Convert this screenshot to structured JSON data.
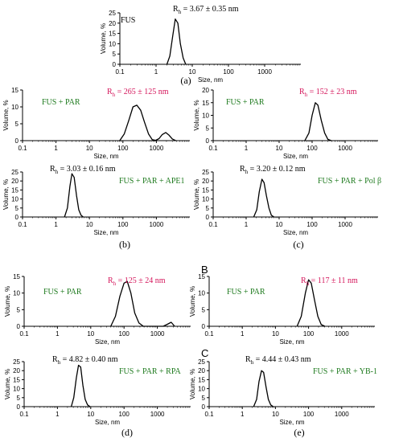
{
  "colors": {
    "axis": "#000000",
    "curve": "#000000",
    "sample": "#1e7a1e",
    "rh_red": "#d4145a",
    "rh_black": "#000000"
  },
  "chart_data": [
    {
      "id": "a",
      "type": "line",
      "caption": "(a)",
      "sample": "FUS",
      "sample_color": "black",
      "rh_sub": "h",
      "rh_value": "3.67 ± 0.35 nm",
      "rh_color": "black",
      "rh_sym": "R",
      "xlabel": "Size, nm",
      "ylabel": "Volume, %",
      "xscale": "log",
      "xlim": [
        0.1,
        10000
      ],
      "ylim": [
        0,
        25
      ],
      "yticks": [
        "0",
        "5",
        "10",
        "15",
        "20",
        "25"
      ],
      "xticks": [
        "0.1",
        "1",
        "10",
        "100",
        "1000"
      ],
      "series": [
        {
          "x": [
            2.0,
            2.4,
            2.9,
            3.4,
            4.0,
            4.7,
            5.6,
            6.6
          ],
          "y": [
            0,
            4,
            14,
            22,
            20,
            10,
            3,
            0
          ]
        }
      ]
    },
    {
      "id": "b_top",
      "type": "line",
      "caption": "",
      "sample": "FUS + PAR",
      "sample_color": "green",
      "rh_sub": "h",
      "rh_value": "265 ± 125 nm",
      "rh_color": "red",
      "rh_sym": "R",
      "xlabel": "Size, nm",
      "ylabel": "Volume, %",
      "xscale": "log",
      "xlim": [
        0.1,
        10000
      ],
      "ylim": [
        0,
        15
      ],
      "yticks": [
        "0",
        "5",
        "10",
        "15"
      ],
      "xticks": [
        "0.1",
        "1",
        "10",
        "100",
        "1000"
      ],
      "series": [
        {
          "x": [
            80,
            110,
            150,
            200,
            260,
            340,
            440,
            580,
            750,
            950,
            1200,
            1500,
            1900,
            2400,
            3000,
            3800
          ],
          "y": [
            0,
            2,
            6,
            10,
            10.5,
            9,
            5.5,
            2,
            0.3,
            0.1,
            0.6,
            1.8,
            2.4,
            1.6,
            0.5,
            0
          ]
        }
      ]
    },
    {
      "id": "b_bot",
      "type": "line",
      "caption": "(b)",
      "sample": "FUS + PAR + APE1",
      "sample_color": "green",
      "rh_sub": "h",
      "rh_value": "3.03 ± 0.16 nm",
      "rh_color": "black",
      "rh_sym": "R",
      "xlabel": "Size, nm",
      "ylabel": "Volume, %",
      "xscale": "log",
      "xlim": [
        0.1,
        10000
      ],
      "ylim": [
        0,
        25
      ],
      "yticks": [
        "0",
        "5",
        "10",
        "15",
        "20",
        "25"
      ],
      "xticks": [
        "0.1",
        "1",
        "10",
        "100",
        "1000"
      ],
      "series": [
        {
          "x": [
            1.8,
            2.2,
            2.6,
            3.0,
            3.5,
            4.1,
            4.8,
            5.6,
            6.5
          ],
          "y": [
            0,
            5,
            17,
            24,
            22,
            12,
            4,
            1,
            0
          ]
        }
      ]
    },
    {
      "id": "c_top",
      "type": "line",
      "caption": "",
      "sample": "FUS + PAR",
      "sample_color": "green",
      "rh_sub": "h",
      "rh_value": "152 ± 23 nm",
      "rh_color": "red",
      "rh_sym": "R",
      "xlabel": "Size, nm",
      "ylabel": "Volume, %",
      "xscale": "log",
      "xlim": [
        0.1,
        10000
      ],
      "ylim": [
        0,
        20
      ],
      "yticks": [
        "0",
        "5",
        "10",
        "15",
        "20"
      ],
      "xticks": [
        "0.1",
        "1",
        "10",
        "100",
        "1000"
      ],
      "series": [
        {
          "x": [
            60,
            80,
            100,
            125,
            150,
            190,
            240,
            300,
            380
          ],
          "y": [
            0,
            3,
            10,
            15,
            14,
            8,
            3,
            0.5,
            0
          ]
        }
      ]
    },
    {
      "id": "c_bot",
      "type": "line",
      "caption": "(c)",
      "sample": "FUS + PAR + Pol β",
      "sample_color": "green",
      "rh_sub": "h",
      "rh_value": "3.20 ± 0.12 nm",
      "rh_color": "black",
      "rh_sym": "R",
      "xlabel": "Size, nm",
      "ylabel": "Volume, %",
      "xscale": "log",
      "xlim": [
        0.1,
        10000
      ],
      "ylim": [
        0,
        25
      ],
      "yticks": [
        "0",
        "5",
        "10",
        "15",
        "20",
        "25"
      ],
      "xticks": [
        "0.1",
        "1",
        "10",
        "100",
        "1000"
      ],
      "series": [
        {
          "x": [
            1.7,
            2.1,
            2.5,
            3.0,
            3.5,
            4.1,
            4.9,
            5.8,
            7.0
          ],
          "y": [
            0,
            4,
            14,
            21,
            19,
            12,
            5,
            1,
            0
          ]
        }
      ]
    },
    {
      "id": "d_top",
      "type": "line",
      "caption": "",
      "sample": "FUS + PAR",
      "sample_color": "green",
      "rh_sub": "h",
      "rh_value": "125 ± 24 nm",
      "rh_color": "red",
      "rh_sym": "R",
      "xlabel": "Size, nm",
      "ylabel": "Volume, %",
      "xscale": "log",
      "xlim": [
        0.1,
        10000
      ],
      "ylim": [
        0,
        15
      ],
      "yticks": [
        "0",
        "5",
        "10",
        "15"
      ],
      "xticks": [
        "0.1",
        "1",
        "10",
        "100",
        "1000"
      ],
      "series": [
        {
          "x": [
            40,
            55,
            75,
            100,
            125,
            160,
            210,
            280,
            380,
            600,
            1500,
            2000,
            2600,
            3300
          ],
          "y": [
            0,
            3,
            9,
            13,
            13.5,
            10,
            4,
            1,
            0,
            0,
            0,
            0.6,
            1.2,
            0
          ]
        }
      ]
    },
    {
      "id": "d_bot",
      "type": "line",
      "caption": "(d)",
      "sample": "FUS + PAR + RPA",
      "sample_color": "green",
      "rh_sub": "h",
      "rh_value": "4.82 ± 0.40 nm",
      "rh_color": "black",
      "rh_sym": "R",
      "xlabel": "Size, nm",
      "ylabel": "Volume, %",
      "xscale": "log",
      "xlim": [
        0.1,
        10000
      ],
      "ylim": [
        0,
        25
      ],
      "yticks": [
        "0",
        "5",
        "10",
        "15",
        "20",
        "25"
      ],
      "xticks": [
        "0.1",
        "1",
        "10",
        "100",
        "1000"
      ],
      "series": [
        {
          "x": [
            2.6,
            3.1,
            3.7,
            4.3,
            5.0,
            5.8,
            6.8,
            8.0,
            9.5
          ],
          "y": [
            0,
            5,
            16,
            23,
            22,
            12,
            4,
            1,
            0
          ]
        }
      ]
    },
    {
      "id": "e_top",
      "type": "line",
      "caption": "",
      "sample": "FUS + PAR",
      "sample_color": "green",
      "rh_sub": "h",
      "rh_value": "117 ± 11 nm",
      "rh_color": "red",
      "rh_sym": "R",
      "xlabel": "Size, nm",
      "ylabel": "Volume, %",
      "xscale": "log",
      "xlim": [
        0.1,
        10000
      ],
      "ylim": [
        0,
        15
      ],
      "yticks": [
        "0",
        "5",
        "10",
        "15"
      ],
      "xticks": [
        "0.1",
        "1",
        "10",
        "100",
        "1000"
      ],
      "series": [
        {
          "x": [
            45,
            60,
            80,
            100,
            120,
            150,
            190,
            240,
            310
          ],
          "y": [
            0,
            3,
            10,
            14,
            13,
            8,
            3,
            0.5,
            0
          ]
        }
      ]
    },
    {
      "id": "e_bot",
      "type": "line",
      "caption": "(e)",
      "sample": "FUS + PAR + YB-1",
      "sample_color": "green",
      "rh_sub": "h",
      "rh_value": "4.44 ± 0.43 nm",
      "rh_color": "black",
      "rh_sym": "R",
      "xlabel": "Size, nm",
      "ylabel": "Volume, %",
      "xscale": "log",
      "xlim": [
        0.1,
        10000
      ],
      "ylim": [
        0,
        25
      ],
      "yticks": [
        "0",
        "5",
        "10",
        "15",
        "20",
        "25"
      ],
      "xticks": [
        "0.1",
        "1",
        "10",
        "100",
        "1000"
      ],
      "series": [
        {
          "x": [
            2.2,
            2.7,
            3.2,
            3.8,
            4.4,
            5.2,
            6.1,
            7.2,
            8.6
          ],
          "y": [
            0,
            4,
            14,
            20,
            19,
            11,
            4,
            1,
            0
          ]
        }
      ]
    }
  ],
  "marks": {
    "B": "B",
    "C": "C"
  }
}
